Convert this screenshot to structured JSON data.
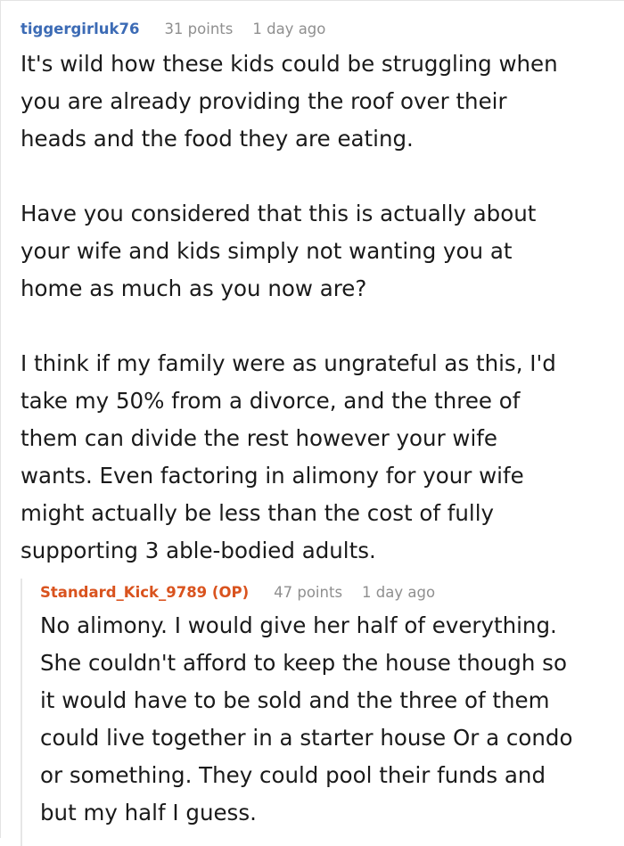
{
  "comment": {
    "author": "tiggergirluk76",
    "author_color": "#3c6bb5",
    "points": "31 points",
    "time": "1 day ago",
    "paragraphs": [
      [
        "It's wild how these kids could be struggling when",
        "you are already providing the roof over their",
        "heads and the food they are eating."
      ],
      [
        "Have you considered that this is actually about",
        "your wife and kids simply not wanting you at",
        "home as much as you now are?"
      ],
      [
        "I think if my family were as ungrateful as this, I'd",
        "take my 50% from a divorce, and the three of",
        "them can divide the rest however your wife",
        "wants. Even factoring in alimony for your wife",
        "might actually be less than the cost of fully",
        "supporting 3 able-bodied adults."
      ]
    ]
  },
  "reply": {
    "author": "Standard_Kick_9789 (OP)",
    "author_color": "#d9531e",
    "points": "47 points",
    "time": "1 day ago",
    "lines": [
      "No alimony. I would give her half of everything.",
      "She couldn't afford to keep the house though so",
      "it would have to be sold and the three of them",
      "could live together in a starter house Or a condo",
      "or something. They could pool their funds and",
      "but my half I guess."
    ]
  }
}
